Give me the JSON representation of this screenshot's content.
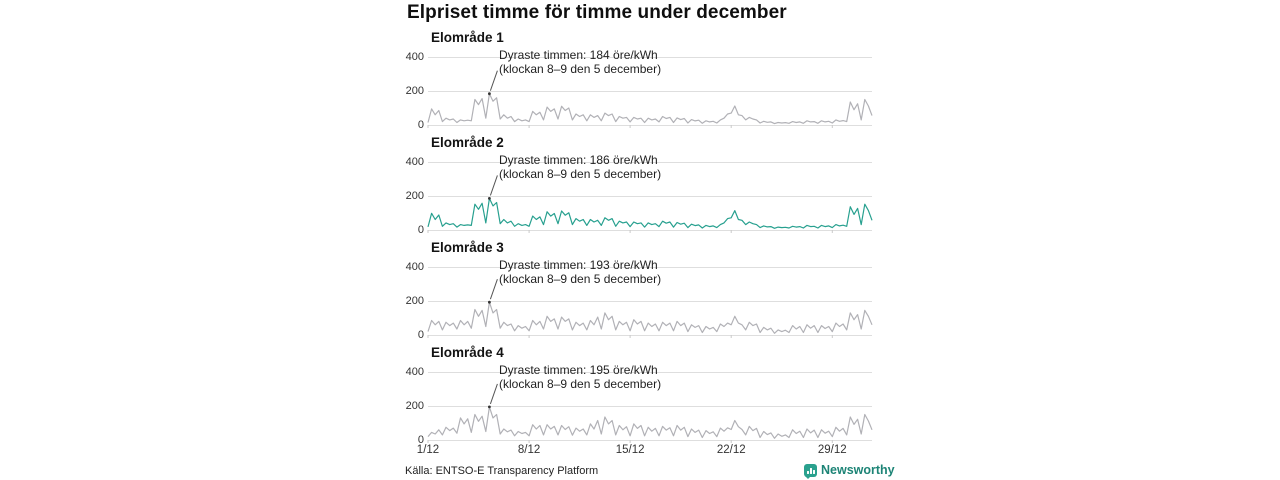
{
  "title": "Elpriset timme för timme under december",
  "source": "Källa: ENTSO-E Transparency Platform",
  "branding": {
    "name": "Newsworthy",
    "icon": "bar-chart-logo-icon",
    "text_color": "#1d8476",
    "icon_bg": "#2aa18e"
  },
  "axis": {
    "y_tick_labels": [
      "400",
      "200",
      "0"
    ],
    "x_ticks": [
      "1/12",
      "8/12",
      "15/12",
      "22/12",
      "29/12"
    ],
    "x_tick_days": [
      1,
      8,
      15,
      22,
      29
    ]
  },
  "colors": {
    "grid": "#dedede",
    "gray_line": "#b1b1b6",
    "teal_line": "#27a08f",
    "pointer": "#555555"
  },
  "chart_data": {
    "type": "line",
    "title": "Elpriset timme för timme under december",
    "xlabel": "",
    "ylabel": "öre/kWh",
    "ylim": [
      0,
      400
    ],
    "x_unit": "day of December, 4 samples per day (00h, 08h, 14h, 19h)",
    "x_range_days": [
      1,
      31.75
    ],
    "grid": "horizontal",
    "legend": "none",
    "panels": [
      {
        "label": "Elområde 1",
        "annotation": [
          "Dyraste timmen: 184 öre/kWh",
          "(klockan 8–9 den 5 december)"
        ],
        "max_value": 184,
        "max_time": "klockan 8–9 den 5 december",
        "color": "#b1b1b6",
        "values": [
          15,
          95,
          60,
          85,
          20,
          40,
          30,
          35,
          15,
          30,
          25,
          28,
          25,
          150,
          120,
          155,
          40,
          184,
          140,
          160,
          35,
          60,
          40,
          50,
          20,
          35,
          25,
          30,
          20,
          80,
          60,
          75,
          30,
          105,
          80,
          95,
          35,
          110,
          85,
          100,
          30,
          65,
          50,
          60,
          25,
          60,
          45,
          55,
          25,
          70,
          55,
          65,
          20,
          50,
          40,
          45,
          18,
          45,
          35,
          40,
          15,
          40,
          30,
          35,
          18,
          50,
          38,
          45,
          15,
          42,
          32,
          38,
          12,
          32,
          24,
          28,
          10,
          25,
          18,
          22,
          12,
          30,
          40,
          65,
          70,
          112,
          60,
          55,
          30,
          45,
          35,
          30,
          12,
          22,
          16,
          18,
          8,
          15,
          12,
          14,
          10,
          20,
          15,
          18,
          10,
          25,
          18,
          20,
          10,
          25,
          18,
          22,
          12,
          30,
          22,
          26,
          20,
          135,
          90,
          125,
          30,
          150,
          112,
          55
        ]
      },
      {
        "label": "Elområde 2",
        "annotation": [
          "Dyraste timmen: 186 öre/kWh",
          "(klockan 8–9 den 5 december)"
        ],
        "max_value": 186,
        "max_time": "klockan 8–9 den 5 december",
        "color": "#27a08f",
        "values": [
          18,
          98,
          62,
          88,
          22,
          42,
          32,
          37,
          17,
          32,
          27,
          30,
          27,
          152,
          122,
          157,
          42,
          186,
          142,
          162,
          37,
          62,
          42,
          52,
          22,
          37,
          27,
          32,
          22,
          82,
          62,
          77,
          32,
          107,
          82,
          97,
          37,
          112,
          87,
          102,
          32,
          67,
          52,
          62,
          27,
          62,
          47,
          57,
          27,
          72,
          57,
          67,
          22,
          52,
          42,
          47,
          20,
          47,
          37,
          42,
          17,
          42,
          32,
          37,
          20,
          52,
          40,
          47,
          17,
          44,
          34,
          40,
          14,
          34,
          26,
          30,
          12,
          27,
          20,
          24,
          14,
          32,
          42,
          67,
          72,
          114,
          62,
          57,
          32,
          47,
          37,
          32,
          14,
          24,
          18,
          20,
          10,
          17,
          14,
          16,
          12,
          22,
          17,
          20,
          12,
          27,
          20,
          22,
          12,
          27,
          20,
          24,
          14,
          32,
          24,
          28,
          22,
          137,
          92,
          127,
          32,
          152,
          114,
          57
        ]
      },
      {
        "label": "Elområde 3",
        "annotation": [
          "Dyraste timmen: 193 öre/kWh",
          "(klockan 8–9 den 5 december)"
        ],
        "max_value": 193,
        "max_time": "klockan 8–9 den 5 december",
        "color": "#b1b1b6",
        "values": [
          20,
          85,
          60,
          80,
          30,
          75,
          55,
          70,
          35,
          85,
          60,
          80,
          40,
          150,
          110,
          145,
          50,
          193,
          130,
          150,
          40,
          75,
          55,
          65,
          25,
          55,
          40,
          50,
          25,
          85,
          60,
          80,
          35,
          110,
          80,
          95,
          35,
          105,
          80,
          95,
          30,
          75,
          55,
          70,
          30,
          85,
          60,
          105,
          35,
          130,
          90,
          110,
          30,
          80,
          60,
          75,
          25,
          90,
          65,
          80,
          25,
          70,
          50,
          65,
          25,
          75,
          55,
          70,
          25,
          80,
          55,
          70,
          20,
          60,
          45,
          55,
          15,
          50,
          35,
          45,
          20,
          65,
          50,
          70,
          60,
          110,
          70,
          60,
          30,
          75,
          55,
          65,
          15,
          45,
          30,
          40,
          10,
          30,
          20,
          28,
          15,
          55,
          35,
          50,
          15,
          60,
          40,
          55,
          15,
          55,
          38,
          50,
          20,
          70,
          50,
          65,
          30,
          130,
          90,
          120,
          35,
          145,
          110,
          60
        ]
      },
      {
        "label": "Elområde 4",
        "annotation": [
          "Dyraste timmen: 195 öre/kWh",
          "(klockan 8–9 den 5 december)"
        ],
        "max_value": 195,
        "max_time": "klockan 8–9 den 5 december",
        "color": "#b1b1b6",
        "values": [
          20,
          45,
          35,
          60,
          30,
          75,
          55,
          70,
          40,
          130,
          95,
          125,
          45,
          150,
          110,
          140,
          50,
          195,
          130,
          150,
          35,
          65,
          48,
          58,
          25,
          50,
          38,
          45,
          25,
          90,
          65,
          85,
          30,
          90,
          65,
          80,
          30,
          85,
          62,
          78,
          28,
          70,
          52,
          65,
          30,
          95,
          65,
          115,
          35,
          135,
          95,
          115,
          30,
          85,
          60,
          78,
          25,
          95,
          68,
          85,
          25,
          75,
          52,
          68,
          25,
          80,
          58,
          72,
          25,
          85,
          58,
          75,
          20,
          65,
          45,
          58,
          15,
          55,
          38,
          48,
          20,
          70,
          52,
          72,
          62,
          115,
          78,
          62,
          30,
          80,
          55,
          68,
          15,
          50,
          32,
          42,
          10,
          35,
          22,
          30,
          15,
          60,
          38,
          52,
          15,
          65,
          42,
          58,
          15,
          60,
          40,
          52,
          20,
          75,
          52,
          68,
          30,
          135,
          92,
          122,
          35,
          150,
          112,
          60
        ]
      }
    ]
  }
}
